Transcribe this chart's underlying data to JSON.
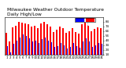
{
  "title": "Milwaukee Weather Outdoor Temperature",
  "subtitle": "Daily High/Low",
  "high_color": "#ff0000",
  "low_color": "#0000ff",
  "background_color": "#ffffff",
  "ylim": [
    14,
    94
  ],
  "yticks": [
    14,
    24,
    34,
    44,
    54,
    64,
    74,
    84
  ],
  "highs": [
    60,
    42,
    72,
    76,
    84,
    82,
    80,
    78,
    74,
    76,
    70,
    80,
    84,
    78,
    74,
    62,
    66,
    74,
    70,
    60,
    64,
    70,
    62,
    58,
    78,
    82,
    76,
    64,
    68,
    72,
    70
  ],
  "lows": [
    32,
    18,
    36,
    44,
    50,
    56,
    54,
    48,
    42,
    44,
    38,
    46,
    50,
    44,
    40,
    30,
    32,
    38,
    34,
    26,
    30,
    38,
    32,
    28,
    42,
    48,
    42,
    30,
    34,
    38,
    36
  ],
  "labels": [
    "1",
    "2",
    "3",
    "4",
    "5",
    "6",
    "7",
    "8",
    "9",
    "10",
    "11",
    "12",
    "13",
    "14",
    "15",
    "16",
    "17",
    "18",
    "19",
    "20",
    "21",
    "22",
    "23",
    "24",
    "25",
    "26",
    "27",
    "28",
    "29",
    "30",
    "31"
  ],
  "vline_positions": [
    24.5,
    25.5
  ],
  "title_fontsize": 4.2,
  "tick_fontsize": 2.8,
  "bar_width": 0.38
}
